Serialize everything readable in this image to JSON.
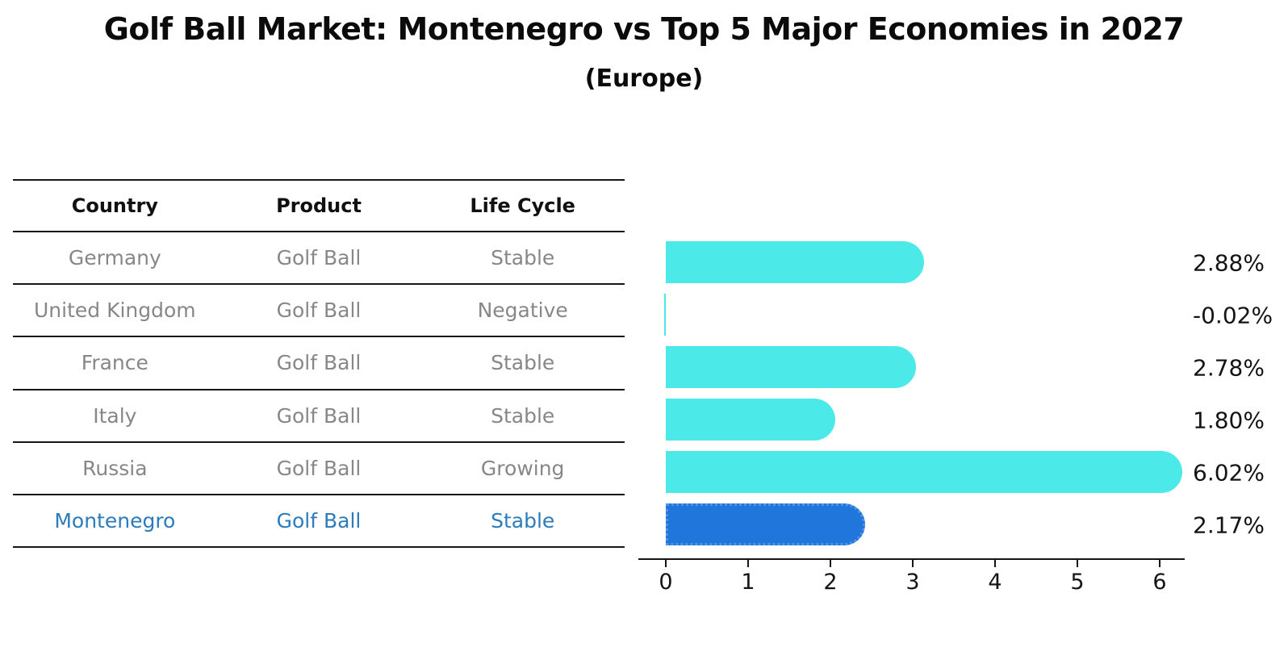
{
  "title": "Golf Ball Market: Montenegro vs Top 5 Major Economies in 2027",
  "subtitle": "(Europe)",
  "table": {
    "headers": [
      "Country",
      "Product",
      "Life Cycle"
    ],
    "rows": [
      {
        "country": "Germany",
        "product": "Golf Ball",
        "life_cycle": "Stable"
      },
      {
        "country": "United Kingdom",
        "product": "Golf Ball",
        "life_cycle": "Negative"
      },
      {
        "country": "France",
        "product": "Golf Ball",
        "life_cycle": "Stable"
      },
      {
        "country": "Italy",
        "product": "Golf Ball",
        "life_cycle": "Stable"
      },
      {
        "country": "Russia",
        "product": "Golf Ball",
        "life_cycle": "Growing"
      },
      {
        "country": "Montenegro",
        "product": "Golf Ball",
        "life_cycle": "Stable"
      }
    ],
    "highlight_row_index": 5
  },
  "chart_data": {
    "type": "bar",
    "orientation": "horizontal",
    "title": "Golf Ball Market: Montenegro vs Top 5 Major Economies in 2027",
    "subtitle": "(Europe)",
    "categories": [
      "Germany",
      "United Kingdom",
      "France",
      "Italy",
      "Russia",
      "Montenegro"
    ],
    "values": [
      2.88,
      -0.02,
      2.78,
      1.8,
      6.02,
      2.17
    ],
    "value_labels": [
      "2.88%",
      "-0.02%",
      "2.78%",
      "1.80%",
      "6.02%",
      "2.17%"
    ],
    "unit": "%",
    "xticks": [
      0,
      1,
      2,
      3,
      4,
      5,
      6
    ],
    "xtick_labels": [
      "0",
      "1",
      "2",
      "3",
      "4",
      "5",
      "6"
    ],
    "xlim": [
      -0.35,
      6.3
    ],
    "grid": false,
    "legend": false,
    "highlight_index": 5,
    "bar_color": "#4be9e7",
    "highlight_color": "#2176dc"
  },
  "colors": {
    "bar_cyan": "#4be9e7",
    "bar_blue": "#2176dc",
    "table_text_gray": "#878787",
    "table_text_blue": "#2b7bbd",
    "axis_black": "#161616"
  }
}
